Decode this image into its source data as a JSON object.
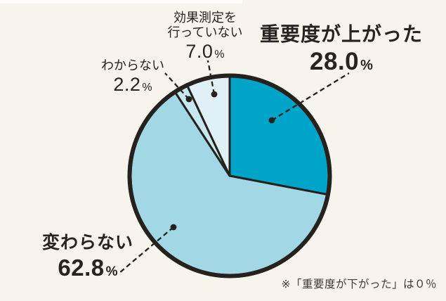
{
  "chart_data": {
    "type": "pie",
    "direction": "clockwise",
    "start_angle_deg": 0,
    "unit": "%",
    "slices": [
      {
        "label": "重要度が上がった",
        "value": 28.0,
        "display_value": "28.0",
        "color": "#00a4c8",
        "emphasis": true
      },
      {
        "label": "変わらない",
        "value": 62.8,
        "display_value": "62.8",
        "color": "#a2d8e5",
        "emphasis": true
      },
      {
        "label": "わからない",
        "value": 2.2,
        "display_value": "2.2",
        "color": "#c8e8f0",
        "emphasis": false
      },
      {
        "label": "効果測定を行っていない",
        "label_lines": [
          "効果測定を",
          "行っていない"
        ],
        "value": 7.0,
        "display_value": "7.0",
        "color": "#dff0f7",
        "emphasis": false
      }
    ],
    "footnote": "※「重要度が下がった」は０％",
    "outline_color": "#25211d",
    "background_color": "#f7f4ee",
    "legend_position": "callouts",
    "grid": false
  },
  "percent_sign": "%"
}
